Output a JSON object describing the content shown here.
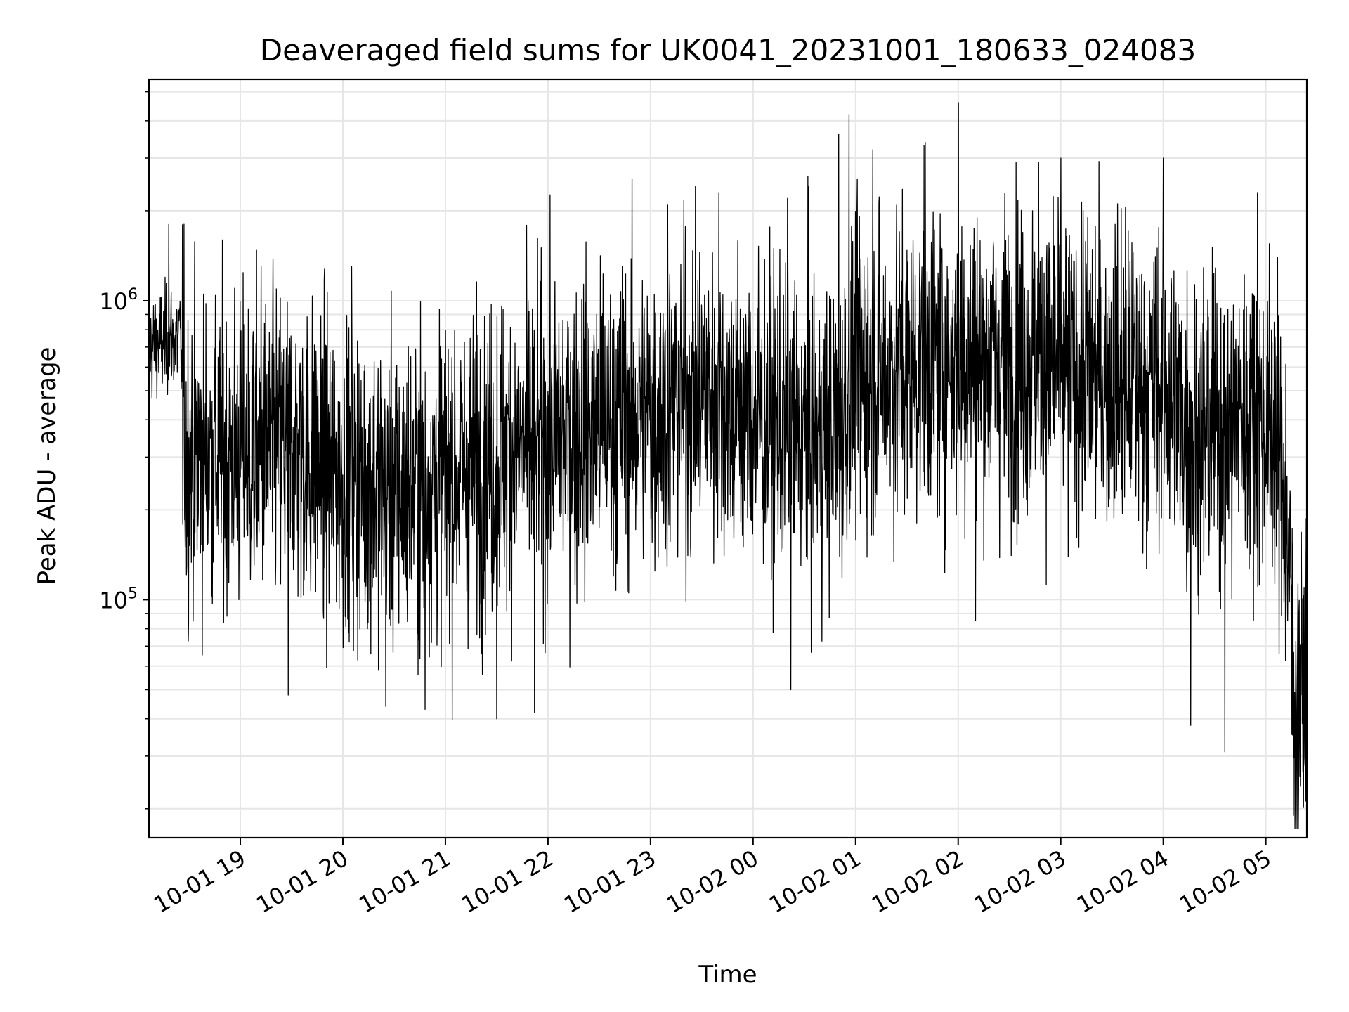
{
  "chart_data": {
    "type": "line",
    "title": "Deaveraged field sums for UK0041_20231001_180633_024083",
    "xlabel": "Time",
    "ylabel": "Peak ADU - average",
    "yscale": "log",
    "ylim": [
      16000,
      5500000
    ],
    "xlim": [
      "2023-10-01 18:06:33",
      "2023-10-02 05:24:00"
    ],
    "grid": true,
    "line_color": "#000000",
    "grid_color": "#e6e6e6",
    "y_major_ticks": [
      {
        "value": 100000,
        "base": "10",
        "exp": "5"
      },
      {
        "value": 1000000,
        "base": "10",
        "exp": "6"
      }
    ],
    "x_ticks": [
      {
        "value": "2023-10-01 19:00",
        "label": "10-01 19"
      },
      {
        "value": "2023-10-01 20:00",
        "label": "10-01 20"
      },
      {
        "value": "2023-10-01 21:00",
        "label": "10-01 21"
      },
      {
        "value": "2023-10-01 22:00",
        "label": "10-01 22"
      },
      {
        "value": "2023-10-01 23:00",
        "label": "10-01 23"
      },
      {
        "value": "2023-10-02 00:00",
        "label": "10-02 00"
      },
      {
        "value": "2023-10-02 01:00",
        "label": "10-02 01"
      },
      {
        "value": "2023-10-02 02:00",
        "label": "10-02 02"
      },
      {
        "value": "2023-10-02 03:00",
        "label": "10-02 03"
      },
      {
        "value": "2023-10-02 04:00",
        "label": "10-02 04"
      },
      {
        "value": "2023-10-02 05:00",
        "label": "10-02 05"
      }
    ],
    "series": [
      {
        "style": "dense noisy line, log-normal scatter around a slowly varying median",
        "median_profile": [
          {
            "x": "2023-10-01 18:06",
            "y": 700000
          },
          {
            "x": "2023-10-01 18:25",
            "y": 750000
          },
          {
            "x": "2023-10-01 18:28",
            "y": 300000
          },
          {
            "x": "2023-10-01 19:00",
            "y": 310000
          },
          {
            "x": "2023-10-01 19:30",
            "y": 330000
          },
          {
            "x": "2023-10-01 20:00",
            "y": 250000
          },
          {
            "x": "2023-10-01 20:30",
            "y": 230000
          },
          {
            "x": "2023-10-01 21:00",
            "y": 260000
          },
          {
            "x": "2023-10-01 21:30",
            "y": 300000
          },
          {
            "x": "2023-10-01 22:00",
            "y": 340000
          },
          {
            "x": "2023-10-01 22:30",
            "y": 400000
          },
          {
            "x": "2023-10-01 23:00",
            "y": 420000
          },
          {
            "x": "2023-10-01 23:30",
            "y": 500000
          },
          {
            "x": "2023-10-02 00:00",
            "y": 400000
          },
          {
            "x": "2023-10-02 00:30",
            "y": 350000
          },
          {
            "x": "2023-10-02 00:50",
            "y": 360000
          },
          {
            "x": "2023-10-02 01:00",
            "y": 550000
          },
          {
            "x": "2023-10-02 01:30",
            "y": 600000
          },
          {
            "x": "2023-10-02 02:00",
            "y": 650000
          },
          {
            "x": "2023-10-02 02:30",
            "y": 650000
          },
          {
            "x": "2023-10-02 03:00",
            "y": 600000
          },
          {
            "x": "2023-10-02 03:30",
            "y": 550000
          },
          {
            "x": "2023-10-02 04:00",
            "y": 520000
          },
          {
            "x": "2023-10-02 04:20",
            "y": 350000
          },
          {
            "x": "2023-10-02 04:45",
            "y": 400000
          },
          {
            "x": "2023-10-02 05:05",
            "y": 400000
          },
          {
            "x": "2023-10-02 05:12",
            "y": 200000
          },
          {
            "x": "2023-10-02 05:17",
            "y": 45000
          },
          {
            "x": "2023-10-02 05:24",
            "y": 60000
          }
        ],
        "spikes": [
          {
            "x": "2023-10-01 18:18",
            "y": 1800000
          },
          {
            "x": "2023-10-01 19:12",
            "y": 1300000
          },
          {
            "x": "2023-10-01 19:28",
            "y": 48000
          },
          {
            "x": "2023-10-01 20:05",
            "y": 1300000
          },
          {
            "x": "2023-10-01 20:25",
            "y": 44000
          },
          {
            "x": "2023-10-01 20:48",
            "y": 43000
          },
          {
            "x": "2023-10-01 21:30",
            "y": 40000
          },
          {
            "x": "2023-10-01 21:52",
            "y": 42000
          },
          {
            "x": "2023-10-01 23:10",
            "y": 2100000
          },
          {
            "x": "2023-10-01 23:40",
            "y": 2300000
          },
          {
            "x": "2023-10-02 00:20",
            "y": 2200000
          },
          {
            "x": "2023-10-02 00:22",
            "y": 50000
          },
          {
            "x": "2023-10-02 00:32",
            "y": 2600000
          },
          {
            "x": "2023-10-02 00:50",
            "y": 3600000
          },
          {
            "x": "2023-10-02 00:56",
            "y": 4200000
          },
          {
            "x": "2023-10-02 01:10",
            "y": 3200000
          },
          {
            "x": "2023-10-02 01:40",
            "y": 3300000
          },
          {
            "x": "2023-10-02 02:00",
            "y": 4600000
          },
          {
            "x": "2023-10-02 02:10",
            "y": 85000
          },
          {
            "x": "2023-10-02 02:47",
            "y": 2900000
          },
          {
            "x": "2023-10-02 03:00",
            "y": 3000000
          },
          {
            "x": "2023-10-02 04:00",
            "y": 3000000
          },
          {
            "x": "2023-10-02 04:16",
            "y": 38000
          },
          {
            "x": "2023-10-02 04:36",
            "y": 31000
          },
          {
            "x": "2023-10-02 04:55",
            "y": 2300000
          },
          {
            "x": "2023-10-02 05:16",
            "y": 19000
          }
        ]
      }
    ]
  }
}
